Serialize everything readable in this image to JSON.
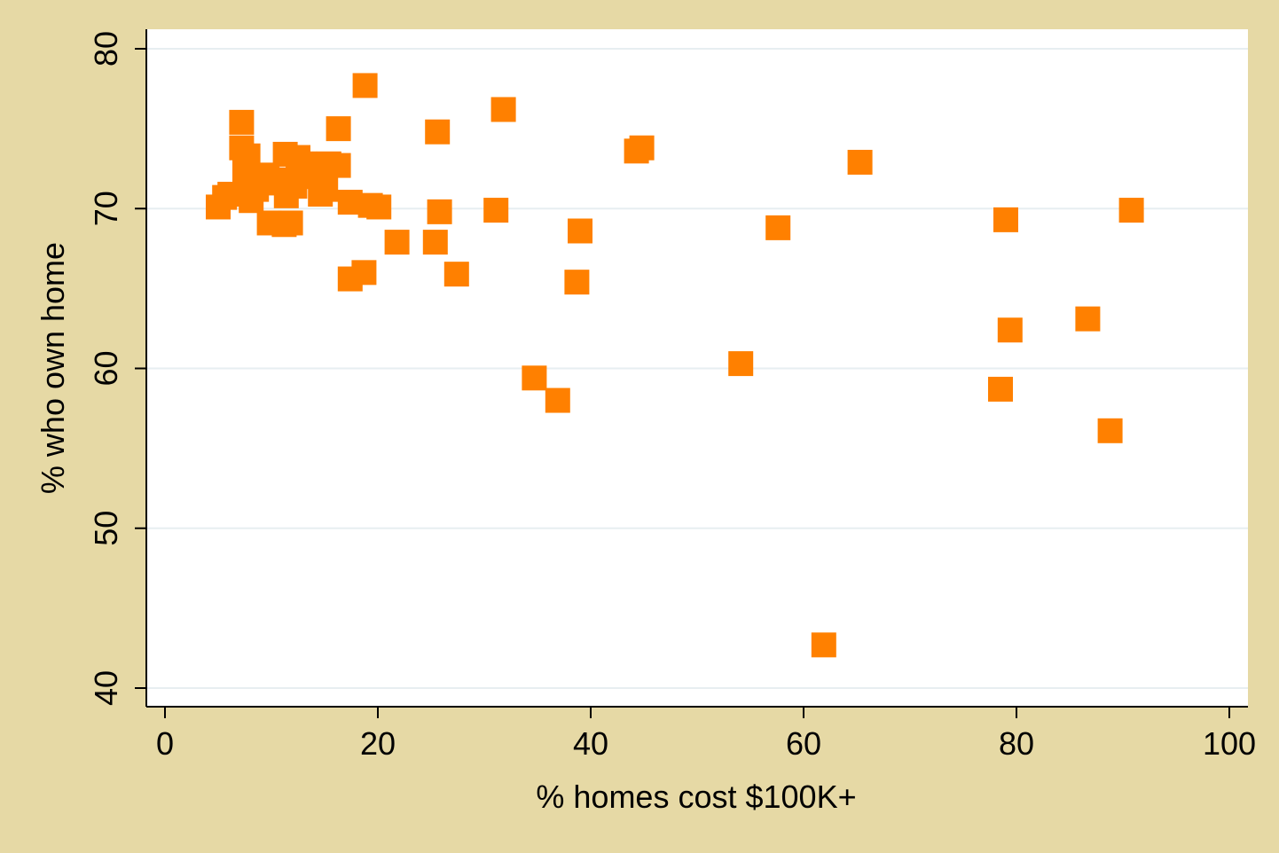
{
  "chart_data": {
    "type": "scatter",
    "title": "",
    "xlabel": "% homes cost $100K+",
    "ylabel": "% who own home",
    "xlim": [
      0,
      100
    ],
    "ylim": [
      40,
      80
    ],
    "xticks": [
      0,
      20,
      40,
      60,
      80,
      100
    ],
    "yticks": [
      40,
      50,
      60,
      70,
      80
    ],
    "grid": true,
    "legend": "none",
    "colors": {
      "background": "#e6d9a5",
      "plot_area": "#ffffff",
      "marker": "#ff8000",
      "gridline": "#e7eef1",
      "axis": "#000000"
    },
    "marker_shape": "square",
    "series": [
      {
        "points": [
          [
            5.0,
            70.1
          ],
          [
            5.6,
            70.7
          ],
          [
            6.1,
            70.9
          ],
          [
            7.2,
            75.4
          ],
          [
            7.2,
            73.8
          ],
          [
            7.8,
            73.3
          ],
          [
            7.5,
            72.4
          ],
          [
            8.2,
            71.8
          ],
          [
            8.1,
            70.5
          ],
          [
            8.6,
            71.2
          ],
          [
            9.6,
            72.1
          ],
          [
            10.2,
            71.6
          ],
          [
            9.8,
            69.1
          ],
          [
            11.2,
            69.0
          ],
          [
            11.8,
            69.1
          ],
          [
            11.3,
            73.4
          ],
          [
            12.5,
            73.2
          ],
          [
            13.1,
            72.8
          ],
          [
            11.6,
            71.8
          ],
          [
            12.2,
            71.4
          ],
          [
            11.4,
            70.8
          ],
          [
            12.8,
            72.0
          ],
          [
            14.3,
            72.6
          ],
          [
            14.8,
            71.9
          ],
          [
            15.4,
            72.8
          ],
          [
            16.3,
            72.7
          ],
          [
            15.1,
            71.2
          ],
          [
            14.6,
            70.9
          ],
          [
            16.3,
            75.0
          ],
          [
            17.4,
            70.4
          ],
          [
            17.4,
            65.6
          ],
          [
            18.8,
            77.7
          ],
          [
            18.7,
            66.0
          ],
          [
            19.3,
            70.2
          ],
          [
            20.1,
            70.1
          ],
          [
            21.8,
            67.9
          ],
          [
            25.6,
            74.8
          ],
          [
            25.8,
            69.8
          ],
          [
            25.4,
            67.9
          ],
          [
            27.4,
            65.9
          ],
          [
            31.1,
            69.9
          ],
          [
            31.8,
            76.2
          ],
          [
            34.7,
            59.4
          ],
          [
            36.9,
            58.0
          ],
          [
            38.7,
            65.4
          ],
          [
            39.0,
            68.6
          ],
          [
            44.3,
            73.6
          ],
          [
            44.8,
            73.8
          ],
          [
            54.1,
            60.3
          ],
          [
            57.6,
            68.8
          ],
          [
            61.9,
            42.7
          ],
          [
            65.3,
            72.9
          ],
          [
            78.5,
            58.7
          ],
          [
            79.0,
            69.3
          ],
          [
            79.4,
            62.4
          ],
          [
            86.7,
            63.1
          ],
          [
            88.8,
            56.1
          ],
          [
            90.8,
            69.9
          ]
        ]
      }
    ]
  }
}
